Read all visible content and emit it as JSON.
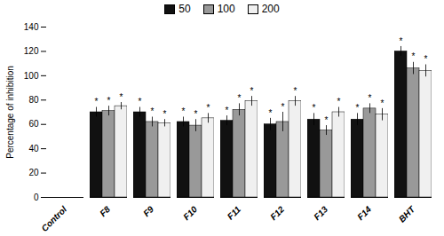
{
  "chart_data": {
    "type": "bar",
    "categories": [
      "Control",
      "F8",
      "F9",
      "F10",
      "F11",
      "F12",
      "F13",
      "F14",
      "BHT"
    ],
    "series": [
      {
        "name": "50",
        "color": "#111111",
        "values": [
          0,
          70,
          70,
          62,
          63,
          60,
          64,
          64,
          120
        ],
        "errors": [
          0,
          4,
          4,
          4,
          4,
          5,
          5,
          5,
          4
        ],
        "significance": [
          false,
          true,
          true,
          true,
          true,
          true,
          true,
          true,
          true
        ]
      },
      {
        "name": "100",
        "color": "#999999",
        "values": [
          0,
          71,
          62,
          59,
          72,
          62,
          55,
          73,
          106
        ],
        "errors": [
          0,
          4,
          4,
          5,
          5,
          8,
          4,
          4,
          5
        ],
        "significance": [
          false,
          true,
          true,
          true,
          true,
          true,
          true,
          true,
          true
        ]
      },
      {
        "name": "200",
        "color": "#f0f0f0",
        "values": [
          0,
          75,
          61,
          65,
          79,
          79,
          70,
          68,
          104
        ],
        "errors": [
          0,
          3,
          3,
          4,
          4,
          4,
          4,
          5,
          5
        ],
        "significance": [
          false,
          true,
          true,
          true,
          true,
          true,
          true,
          true,
          true
        ]
      }
    ],
    "edgecolor": "#000000",
    "significance_mark": "*",
    "ylabel": "Percentage of inhibition",
    "ylim": [
      0,
      140
    ],
    "yticks": [
      0,
      20,
      40,
      60,
      80,
      100,
      120,
      140
    ],
    "grid": false,
    "legend": "top"
  }
}
